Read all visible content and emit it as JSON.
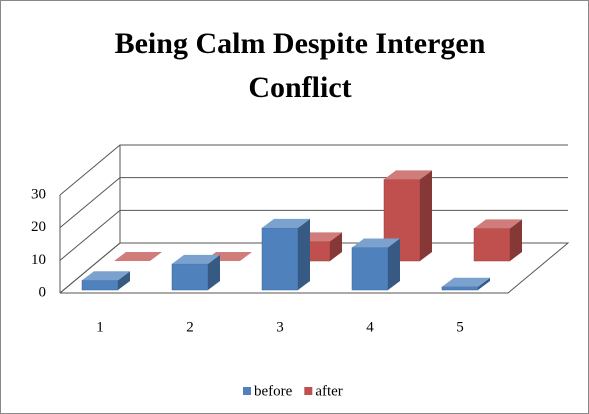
{
  "chart_data": {
    "type": "bar3d",
    "title": "Being Calm Despite Intergen Conflict",
    "categories": [
      "1",
      "2",
      "3",
      "4",
      "5"
    ],
    "series": [
      {
        "name": "before",
        "color": "#4f81bd",
        "values": [
          3,
          8,
          19,
          13,
          1
        ]
      },
      {
        "name": "after",
        "color": "#c0504d",
        "values": [
          0,
          0,
          6,
          25,
          10
        ]
      }
    ],
    "ylim": [
      0,
      30
    ],
    "yticks": [
      0,
      10,
      20,
      30
    ],
    "grid": true,
    "legend": "bottom"
  }
}
